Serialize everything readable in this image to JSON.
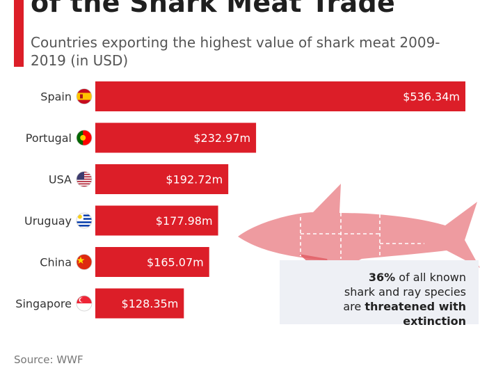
{
  "header": {
    "title": "of the Shark Meat Trade",
    "subtitle": "Countries exporting the highest value of shark meat 2009-2019 (in USD)"
  },
  "chart_data": {
    "type": "bar",
    "orientation": "horizontal",
    "categories": [
      "Spain",
      "Portugal",
      "USA",
      "Uruguay",
      "China",
      "Singapore"
    ],
    "values": [
      536.34,
      232.97,
      192.72,
      177.98,
      165.07,
      128.35
    ],
    "value_labels": [
      "$536.34m",
      "$232.97m",
      "$192.72m",
      "$177.98m",
      "$165.07m",
      "$128.35m"
    ],
    "flag_icons": [
      "spain-flag-icon",
      "portugal-flag-icon",
      "usa-flag-icon",
      "uruguay-flag-icon",
      "china-flag-icon",
      "singapore-flag-icon"
    ],
    "bar_color": "#dc1e28",
    "grid": false
  },
  "annotation": {
    "highlight": "36%",
    "text1": " of all known",
    "text2": "shark and ray species",
    "text3": "are ",
    "emphasis": "threatened with extinction"
  },
  "source": "Source: WWF",
  "colors": {
    "accent": "#dc1e28",
    "shark": "#e87a80",
    "box": "#eef0f5"
  }
}
